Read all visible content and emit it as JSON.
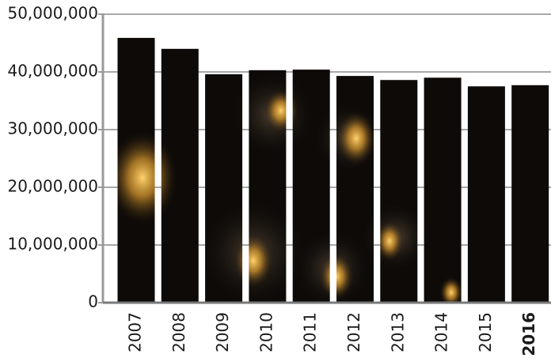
{
  "chart_data": {
    "type": "bar",
    "categories": [
      "2007",
      "2008",
      "2009",
      "2010",
      "2011",
      "2012",
      "2013",
      "2014",
      "2015",
      "2016"
    ],
    "values": [
      45900000,
      44000000,
      39600000,
      40300000,
      40400000,
      39300000,
      38600000,
      39000000,
      37500000,
      37700000
    ],
    "ylim": [
      0,
      50000000
    ],
    "yticks": [
      0,
      {
        "value": 10000000,
        "label": "10,000,000"
      },
      {
        "value": 20000000,
        "label": "20,000,000"
      },
      {
        "value": 30000000,
        "label": "30,000,000"
      },
      {
        "value": 40000000,
        "label": "40,000,000"
      },
      {
        "value": 50000000,
        "label": "50,000,000"
      }
    ],
    "grid": true
  }
}
